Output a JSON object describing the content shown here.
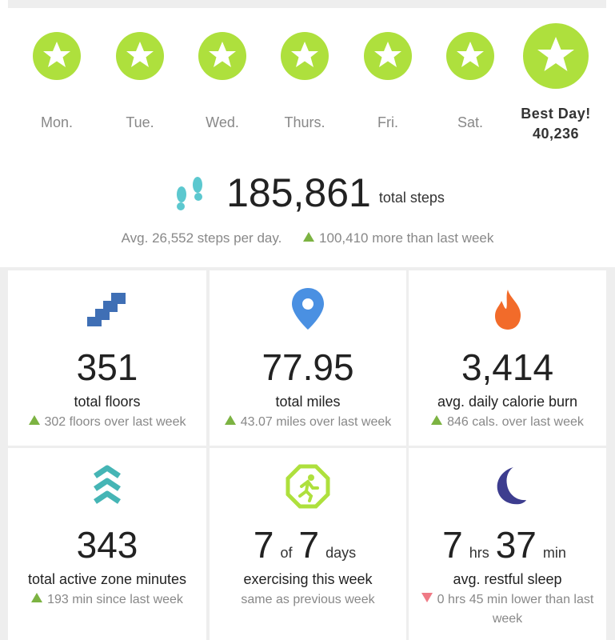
{
  "week_days": [
    "Mon.",
    "Tue.",
    "Wed.",
    "Thurs.",
    "Fri.",
    "Sat."
  ],
  "best_day": {
    "label": "Best Day!",
    "steps": "40,236"
  },
  "steps": {
    "total": "185,861",
    "unit": "total steps",
    "average": "Avg. 26,552 steps per day.",
    "change": "100,410 more than last week",
    "trend": "up"
  },
  "stats": [
    {
      "value": [
        "351"
      ],
      "label": "total floors",
      "change": "302 floors over last week",
      "trend": "up"
    },
    {
      "value": [
        "77.95"
      ],
      "label": "total miles",
      "change": "43.07 miles over last week",
      "trend": "up"
    },
    {
      "value": [
        "3,414"
      ],
      "label": "avg. daily calorie burn",
      "change": "846 cals. over last week",
      "trend": "up"
    },
    {
      "value": [
        "343"
      ],
      "label": "total active zone minutes",
      "change": "193 min since last week",
      "trend": "up"
    },
    {
      "value": [
        "7",
        "of",
        "7",
        "days"
      ],
      "label": "exercising this week",
      "change": "same as previous week",
      "trend": "none"
    },
    {
      "value": [
        "7",
        "hrs",
        "37",
        "min"
      ],
      "label": "avg. restful sleep",
      "change": "0 hrs 45 min lower than last week",
      "trend": "down"
    }
  ]
}
